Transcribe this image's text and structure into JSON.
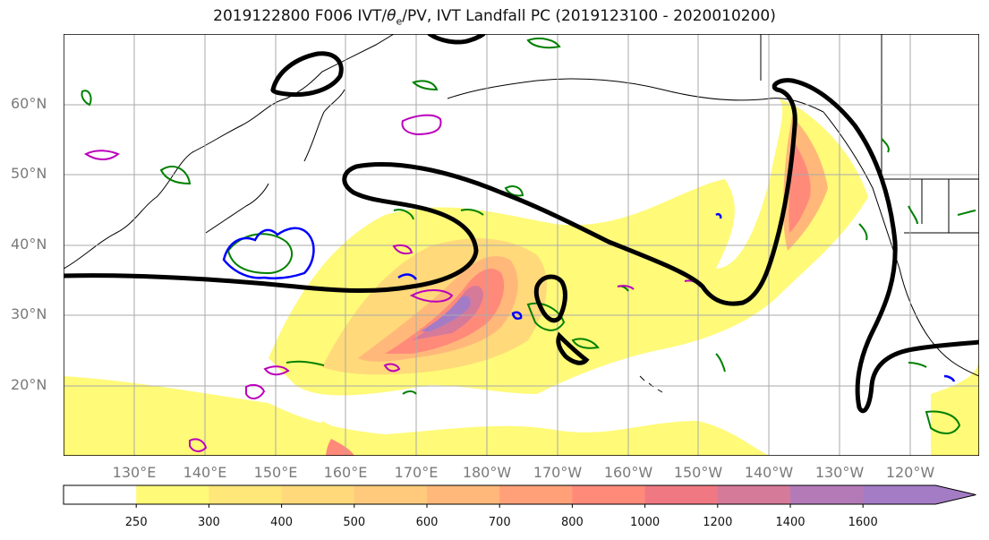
{
  "title": {
    "text_prefix": "2019122800 F006 IVT/",
    "theta": "θ",
    "theta_sub": "e",
    "text_suffix": "/PV, IVT Landfall PC (2019123100 - 2020010200)"
  },
  "lat_labels": [
    "60°N",
    "50°N",
    "40°N",
    "30°N",
    "20°N"
  ],
  "lon_labels": [
    "130°E",
    "140°E",
    "150°E",
    "160°E",
    "170°E",
    "180°W",
    "170°W",
    "160°W",
    "150°W",
    "140°W",
    "130°W",
    "120°W"
  ],
  "colorbar": {
    "ticks": [
      "250",
      "300",
      "400",
      "500",
      "600",
      "700",
      "800",
      "1000",
      "1200",
      "1400",
      "1600"
    ],
    "colors": [
      "#ffffff",
      "#fffa78",
      "#ffe77a",
      "#ffd97a",
      "#ffca7c",
      "#ffb87a",
      "#ffa078",
      "#ff8a7a",
      "#f07882",
      "#d67a9a",
      "#b47ab8",
      "#a47cc6",
      "#a47cc6"
    ]
  },
  "colors": {
    "pv_contour": "#008000",
    "theta_e_contour": "#0000ff",
    "pv_magenta": "#bb00bb",
    "landfall_pc": "#000000",
    "grid": "#aaaaaa"
  }
}
